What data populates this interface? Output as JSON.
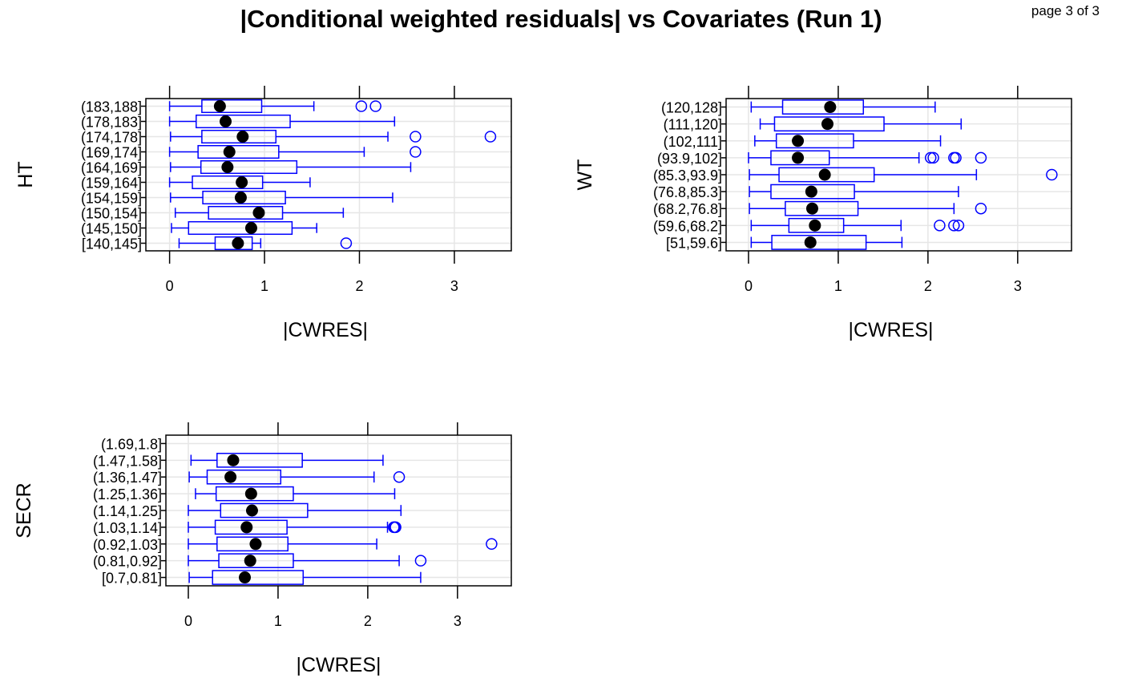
{
  "page": {
    "title": "|Conditional weighted residuals| vs Covariates (Run 1)",
    "page_label": "page 3 of 3"
  },
  "colors": {
    "box": "#0000ff",
    "median": "#000000",
    "grid": "#e6e6e6",
    "frame": "#000000"
  },
  "chart_data": [
    {
      "type": "box",
      "orientation": "horizontal",
      "ylabel": "HT",
      "xlabel": "|CWRES|",
      "xlim": [
        -0.25,
        3.6
      ],
      "xticks": [
        0,
        1,
        2,
        3
      ],
      "grid": true,
      "categories": [
        "[140,145]",
        "(145,150]",
        "(150,154]",
        "(154,159]",
        "(159,164]",
        "(164,169]",
        "(169,174]",
        "(174,178]",
        "(178,183]",
        "(183,188]"
      ],
      "boxes": [
        {
          "whisker_low": 0.1,
          "q1": 0.48,
          "median": 0.72,
          "q3": 0.87,
          "whisker_high": 0.96,
          "outliers": [
            1.86
          ]
        },
        {
          "whisker_low": 0.02,
          "q1": 0.2,
          "median": 0.86,
          "q3": 1.29,
          "whisker_high": 1.55,
          "outliers": []
        },
        {
          "whisker_low": 0.06,
          "q1": 0.41,
          "median": 0.94,
          "q3": 1.19,
          "whisker_high": 1.83,
          "outliers": []
        },
        {
          "whisker_low": 0.01,
          "q1": 0.35,
          "median": 0.75,
          "q3": 1.22,
          "whisker_high": 2.35,
          "outliers": []
        },
        {
          "whisker_low": 0.0,
          "q1": 0.24,
          "median": 0.76,
          "q3": 0.98,
          "whisker_high": 1.48,
          "outliers": []
        },
        {
          "whisker_low": 0.01,
          "q1": 0.33,
          "median": 0.61,
          "q3": 1.34,
          "whisker_high": 2.54,
          "outliers": []
        },
        {
          "whisker_low": 0.0,
          "q1": 0.3,
          "median": 0.63,
          "q3": 1.15,
          "whisker_high": 2.05,
          "outliers": [
            2.59
          ]
        },
        {
          "whisker_low": 0.01,
          "q1": 0.34,
          "median": 0.77,
          "q3": 1.12,
          "whisker_high": 2.3,
          "outliers": [
            2.59,
            3.38
          ]
        },
        {
          "whisker_low": 0.0,
          "q1": 0.28,
          "median": 0.59,
          "q3": 1.27,
          "whisker_high": 2.37,
          "outliers": []
        },
        {
          "whisker_low": 0.0,
          "q1": 0.34,
          "median": 0.53,
          "q3": 0.97,
          "whisker_high": 1.52,
          "outliers": [
            2.02,
            2.17
          ]
        }
      ]
    },
    {
      "type": "box",
      "orientation": "horizontal",
      "ylabel": "WT",
      "xlabel": "|CWRES|",
      "xlim": [
        -0.25,
        3.6
      ],
      "xticks": [
        0,
        1,
        2,
        3
      ],
      "grid": true,
      "categories": [
        "[51,59.6]",
        "(59.6,68.2]",
        "(68.2,76.8]",
        "(76.8,85.3]",
        "(85.3,93.9]",
        "(93.9,102]",
        "(102,111]",
        "(111,120]",
        "(120,128]"
      ],
      "boxes": [
        {
          "whisker_low": 0.03,
          "q1": 0.26,
          "median": 0.69,
          "q3": 1.31,
          "whisker_high": 1.71,
          "outliers": []
        },
        {
          "whisker_low": 0.03,
          "q1": 0.45,
          "median": 0.74,
          "q3": 1.06,
          "whisker_high": 1.7,
          "outliers": [
            2.13,
            2.29,
            2.34
          ]
        },
        {
          "whisker_low": 0.01,
          "q1": 0.41,
          "median": 0.71,
          "q3": 1.22,
          "whisker_high": 2.29,
          "outliers": [
            2.59
          ]
        },
        {
          "whisker_low": 0.01,
          "q1": 0.25,
          "median": 0.7,
          "q3": 1.18,
          "whisker_high": 2.34,
          "outliers": []
        },
        {
          "whisker_low": 0.01,
          "q1": 0.34,
          "median": 0.85,
          "q3": 1.4,
          "whisker_high": 2.54,
          "outliers": [
            3.38
          ]
        },
        {
          "whisker_low": 0.0,
          "q1": 0.25,
          "median": 0.55,
          "q3": 0.9,
          "whisker_high": 1.9,
          "outliers": [
            2.03,
            2.06,
            2.29,
            2.31,
            2.59
          ]
        },
        {
          "whisker_low": 0.07,
          "q1": 0.31,
          "median": 0.55,
          "q3": 1.17,
          "whisker_high": 2.14,
          "outliers": []
        },
        {
          "whisker_low": 0.13,
          "q1": 0.29,
          "median": 0.88,
          "q3": 1.51,
          "whisker_high": 2.37,
          "outliers": []
        },
        {
          "whisker_low": 0.03,
          "q1": 0.38,
          "median": 0.91,
          "q3": 1.28,
          "whisker_high": 2.08,
          "outliers": []
        }
      ]
    },
    {
      "type": "box",
      "orientation": "horizontal",
      "ylabel": "SECR",
      "xlabel": "|CWRES|",
      "xlim": [
        -0.25,
        3.6
      ],
      "xticks": [
        0,
        1,
        2,
        3
      ],
      "grid": true,
      "categories": [
        "[0.7,0.81]",
        "(0.81,0.92]",
        "(0.92,1.03]",
        "(1.03,1.14]",
        "(1.14,1.25]",
        "(1.25,1.36]",
        "(1.36,1.47]",
        "(1.47,1.58]",
        "(1.69,1.8]"
      ],
      "boxes": [
        {
          "whisker_low": 0.01,
          "q1": 0.27,
          "median": 0.63,
          "q3": 1.28,
          "whisker_high": 2.59,
          "outliers": []
        },
        {
          "whisker_low": 0.0,
          "q1": 0.34,
          "median": 0.69,
          "q3": 1.17,
          "whisker_high": 2.35,
          "outliers": [
            2.59
          ]
        },
        {
          "whisker_low": 0.0,
          "q1": 0.32,
          "median": 0.75,
          "q3": 1.11,
          "whisker_high": 2.1,
          "outliers": [
            3.38
          ]
        },
        {
          "whisker_low": 0.0,
          "q1": 0.3,
          "median": 0.65,
          "q3": 1.1,
          "whisker_high": 2.22,
          "outliers": [
            2.29,
            2.3,
            2.31
          ]
        },
        {
          "whisker_low": 0.0,
          "q1": 0.36,
          "median": 0.71,
          "q3": 1.33,
          "whisker_high": 2.37,
          "outliers": []
        },
        {
          "whisker_low": 0.08,
          "q1": 0.31,
          "median": 0.7,
          "q3": 1.17,
          "whisker_high": 2.3,
          "outliers": []
        },
        {
          "whisker_low": 0.01,
          "q1": 0.21,
          "median": 0.47,
          "q3": 1.03,
          "whisker_high": 2.07,
          "outliers": [
            2.35
          ]
        },
        {
          "whisker_low": 0.03,
          "q1": 0.32,
          "median": 0.5,
          "q3": 1.27,
          "whisker_high": 2.17,
          "outliers": []
        },
        null
      ]
    }
  ]
}
